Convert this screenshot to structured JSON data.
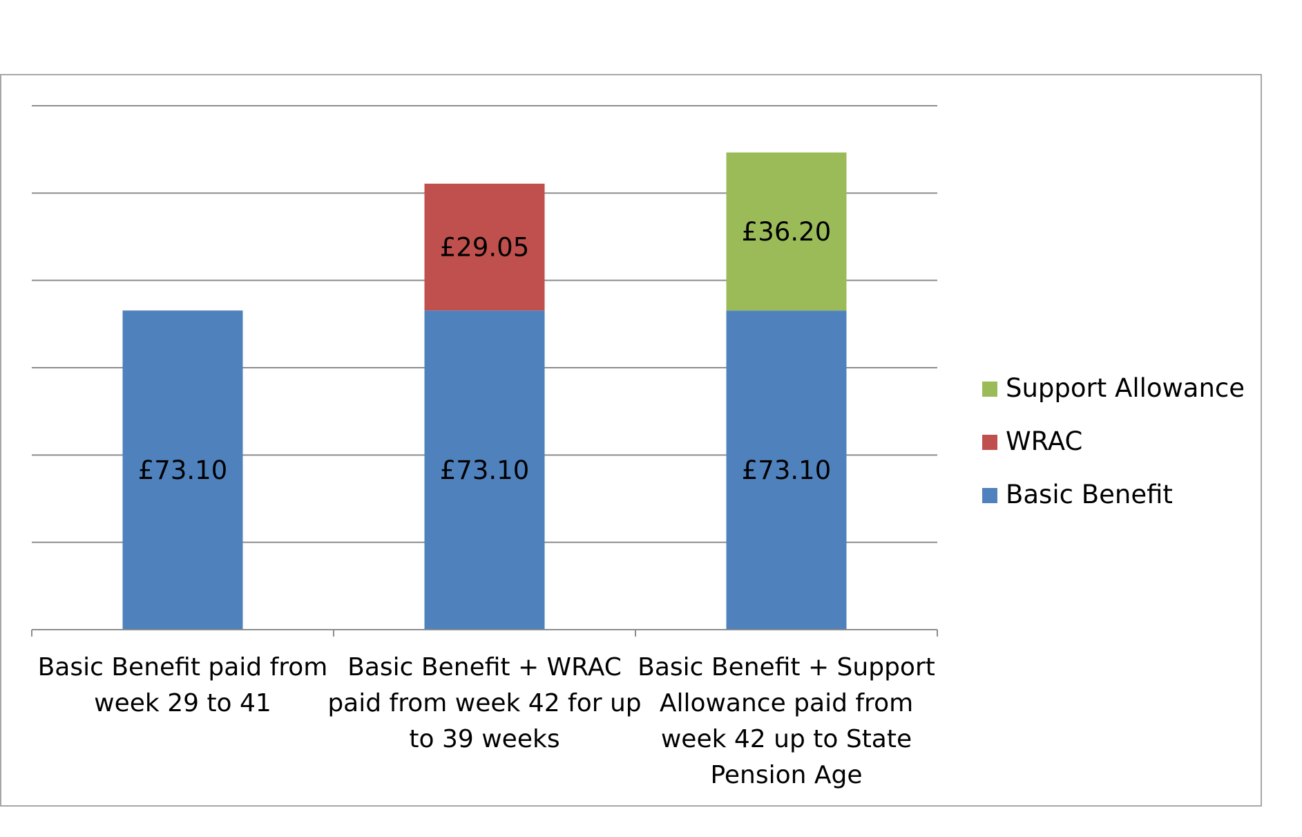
{
  "chart_data": {
    "type": "bar",
    "stacked": true,
    "categories": [
      [
        "Basic Benefit paid from",
        "week 29 to 41"
      ],
      [
        "Basic Benefit + WRAC",
        "paid from week 42 for up",
        "to 39 weeks"
      ],
      [
        "Basic Benefit + Support",
        "Allowance paid from",
        "week 42 up to State",
        "Pension Age"
      ]
    ],
    "series": [
      {
        "name": "Basic Benefit",
        "color": "#4f81bd",
        "values": [
          73.1,
          73.1,
          73.1
        ],
        "labels": [
          "£73.10",
          "£73.10",
          "£73.10"
        ]
      },
      {
        "name": "WRAC",
        "color": "#c0504d",
        "values": [
          0,
          29.05,
          0
        ],
        "labels": [
          "",
          "£29.05",
          ""
        ]
      },
      {
        "name": "Support Allowance",
        "color": "#9bbb59",
        "values": [
          0,
          0,
          36.2
        ],
        "labels": [
          "",
          "",
          "£36.20"
        ]
      }
    ],
    "legend_order": [
      "Support Allowance",
      "WRAC",
      "Basic Benefit"
    ],
    "legend_position": "right",
    "ylim": [
      0,
      120
    ],
    "ytick_step": 20,
    "y_tick_labels_shown": false,
    "grid": true
  }
}
